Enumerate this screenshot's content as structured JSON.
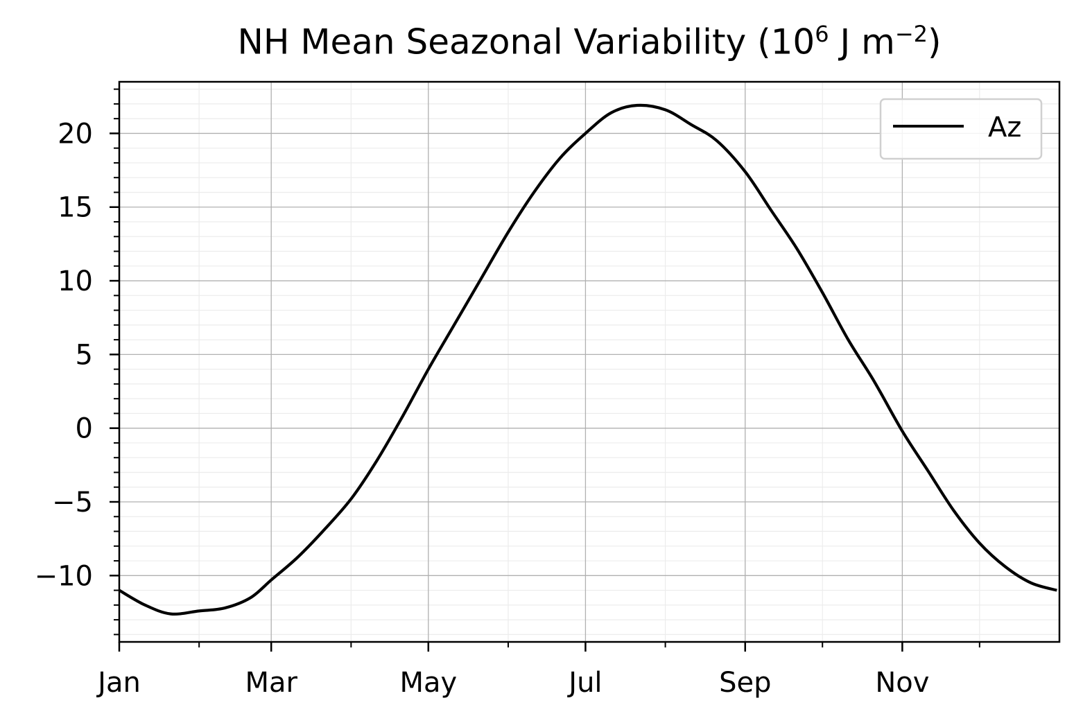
{
  "chart_data": {
    "type": "line",
    "title": {
      "prefix": "NH Mean Seazonal Variability (10",
      "exp1": "6",
      "middle": " J m",
      "exp2": "−2",
      "suffix": ")"
    },
    "xlabel": "",
    "ylabel": "",
    "x_ticks": [
      "Jan",
      "Mar",
      "May",
      "Jul",
      "Sep",
      "Nov"
    ],
    "y_ticks": [
      "−10",
      "−5",
      "0",
      "5",
      "10",
      "15",
      "20"
    ],
    "ylim": [
      -14.5,
      23.5
    ],
    "xlim_days": [
      0,
      365
    ],
    "grid": true,
    "legend_position": "top-right",
    "series": [
      {
        "name": "Az",
        "color": "#000000",
        "x": [
          "Jan 1",
          "Jan 11",
          "Jan 21",
          "Feb 1",
          "Feb 11",
          "Feb 21",
          "Mar 1",
          "Mar 11",
          "Mar 21",
          "Apr 1",
          "Apr 11",
          "Apr 21",
          "May 1",
          "May 11",
          "May 21",
          "Jun 1",
          "Jun 11",
          "Jun 21",
          "Jul 1",
          "Jul 11",
          "Jul 21",
          "Aug 1",
          "Aug 11",
          "Aug 21",
          "Sep 1",
          "Sep 11",
          "Sep 21",
          "Oct 1",
          "Oct 11",
          "Oct 21",
          "Nov 1",
          "Nov 11",
          "Nov 21",
          "Dec 1",
          "Dec 11",
          "Dec 21",
          "Dec 31"
        ],
        "y": [
          -11.0,
          -12.0,
          -12.6,
          -12.4,
          -12.2,
          -11.5,
          -10.3,
          -8.8,
          -7.0,
          -4.8,
          -2.2,
          0.8,
          4.0,
          7.0,
          10.0,
          13.3,
          16.0,
          18.3,
          20.0,
          21.4,
          21.9,
          21.6,
          20.6,
          19.5,
          17.4,
          14.8,
          12.2,
          9.2,
          6.0,
          3.2,
          -0.2,
          -2.9,
          -5.6,
          -7.8,
          -9.4,
          -10.5,
          -11.0
        ]
      }
    ]
  }
}
